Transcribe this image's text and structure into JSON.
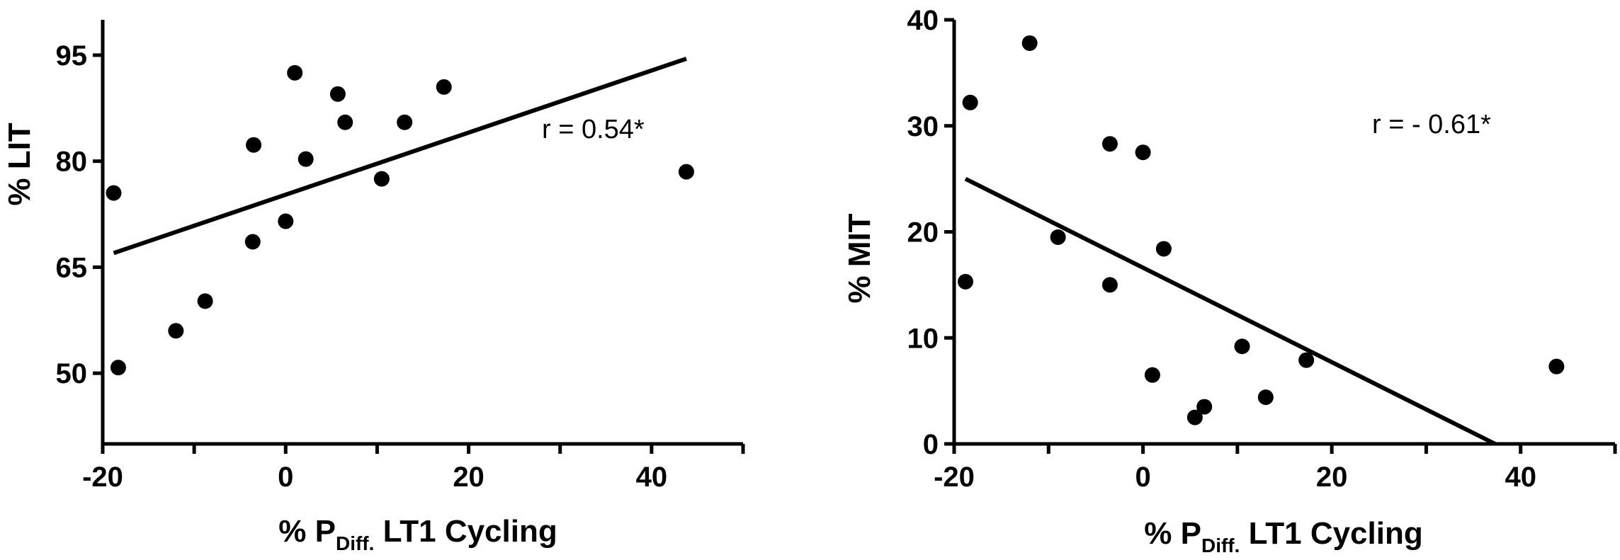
{
  "chart_data": [
    {
      "type": "scatter",
      "xlabel": "% P",
      "xlabel_sub": "Diff.",
      "xlabel_rest": " LT1 Cycling",
      "ylabel": "% LIT",
      "xlim": [
        -20,
        50
      ],
      "ylim": [
        40,
        100
      ],
      "x_ticks": [
        -20,
        -10,
        0,
        10,
        20,
        30,
        40,
        50
      ],
      "x_tick_labels": [
        "-20",
        "",
        "0",
        "",
        "20",
        "",
        "40",
        ""
      ],
      "y_ticks": [
        50,
        65,
        80,
        95
      ],
      "y_tick_labels": [
        "50",
        "65",
        "80",
        "95"
      ],
      "annotation": "r = 0.54*",
      "points": [
        {
          "x": -18.8,
          "y": 75.5
        },
        {
          "x": -18.3,
          "y": 50.8
        },
        {
          "x": -12.0,
          "y": 56.0
        },
        {
          "x": -8.8,
          "y": 60.2
        },
        {
          "x": -3.5,
          "y": 82.3
        },
        {
          "x": -3.6,
          "y": 68.6
        },
        {
          "x": 0.0,
          "y": 71.5
        },
        {
          "x": 1.0,
          "y": 92.5
        },
        {
          "x": 2.2,
          "y": 80.3
        },
        {
          "x": 5.7,
          "y": 89.5
        },
        {
          "x": 6.5,
          "y": 85.5
        },
        {
          "x": 10.5,
          "y": 77.5
        },
        {
          "x": 13.0,
          "y": 85.5
        },
        {
          "x": 17.3,
          "y": 90.5
        },
        {
          "x": 43.8,
          "y": 78.5
        }
      ],
      "fit_line": {
        "x": [
          -18.8,
          43.8
        ],
        "y": [
          67.0,
          94.5
        ]
      },
      "grid": false
    },
    {
      "type": "scatter",
      "xlabel": "% P",
      "xlabel_sub": "Diff.",
      "xlabel_rest": " LT1 Cycling",
      "ylabel": "% MIT",
      "xlim": [
        -20,
        50
      ],
      "ylim": [
        0,
        40
      ],
      "x_ticks": [
        -20,
        -10,
        0,
        10,
        20,
        30,
        40,
        50
      ],
      "x_tick_labels": [
        "-20",
        "",
        "0",
        "",
        "20",
        "",
        "40",
        ""
      ],
      "y_ticks": [
        0,
        10,
        20,
        30,
        40
      ],
      "y_tick_labels": [
        "0",
        "10",
        "20",
        "30",
        "40"
      ],
      "annotation": "r = - 0.61*",
      "points": [
        {
          "x": -18.8,
          "y": 15.3
        },
        {
          "x": -18.3,
          "y": 32.2
        },
        {
          "x": -12.0,
          "y": 37.8
        },
        {
          "x": -9.0,
          "y": 19.5
        },
        {
          "x": -3.5,
          "y": 28.3
        },
        {
          "x": -3.5,
          "y": 15.0
        },
        {
          "x": 0.0,
          "y": 27.5
        },
        {
          "x": 1.0,
          "y": 6.5
        },
        {
          "x": 2.2,
          "y": 18.4
        },
        {
          "x": 5.5,
          "y": 2.5
        },
        {
          "x": 6.5,
          "y": 3.5
        },
        {
          "x": 10.5,
          "y": 9.2
        },
        {
          "x": 13.0,
          "y": 4.4
        },
        {
          "x": 17.3,
          "y": 7.9
        },
        {
          "x": 43.8,
          "y": 7.3
        }
      ],
      "fit_line": {
        "x": [
          -18.8,
          37.3
        ],
        "y": [
          25.0,
          0.0
        ]
      },
      "grid": false
    }
  ]
}
